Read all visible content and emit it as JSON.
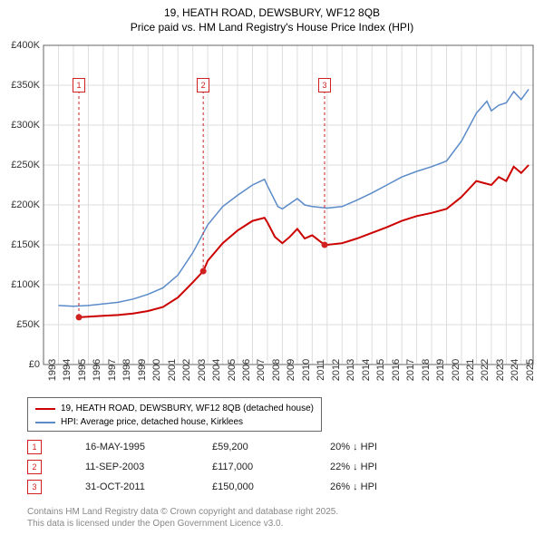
{
  "title_line1": "19, HEATH ROAD, DEWSBURY, WF12 8QB",
  "title_line2": "Price paid vs. HM Land Registry's House Price Index (HPI)",
  "chart": {
    "type": "line",
    "background_color": "#ffffff",
    "grid_color": "#dddddd",
    "axis_color": "#666666",
    "x_years": [
      1993,
      1994,
      1995,
      1996,
      1997,
      1998,
      1999,
      2000,
      2001,
      2002,
      2003,
      2004,
      2005,
      2006,
      2007,
      2008,
      2009,
      2010,
      2011,
      2012,
      2013,
      2014,
      2015,
      2016,
      2017,
      2018,
      2019,
      2020,
      2021,
      2022,
      2023,
      2024,
      2025
    ],
    "xlim": [
      1993,
      2025.8
    ],
    "ylim": [
      0,
      400000
    ],
    "ytick_step": 50000,
    "ytick_labels": [
      "£0",
      "£50K",
      "£100K",
      "£150K",
      "£200K",
      "£250K",
      "£300K",
      "£350K",
      "£400K"
    ],
    "marker_line_color": "#d02020",
    "marker_line_dash": "3,3",
    "marker_badge_border": "#d02020",
    "marker_badge_text": "#d02020",
    "series": [
      {
        "name": "price_paid",
        "label": "19, HEATH ROAD, DEWSBURY, WF12 8QB (detached house)",
        "color": "#cc0000",
        "width": 2,
        "points": [
          [
            1995.37,
            59200
          ],
          [
            1996,
            60000
          ],
          [
            1997,
            61000
          ],
          [
            1998,
            62000
          ],
          [
            1999,
            64000
          ],
          [
            2000,
            67000
          ],
          [
            2001,
            72000
          ],
          [
            2002,
            84000
          ],
          [
            2003,
            103000
          ],
          [
            2003.7,
            117000
          ],
          [
            2004,
            130000
          ],
          [
            2005,
            152000
          ],
          [
            2006,
            168000
          ],
          [
            2007,
            180000
          ],
          [
            2007.8,
            184000
          ],
          [
            2008,
            178000
          ],
          [
            2008.5,
            160000
          ],
          [
            2009,
            152000
          ],
          [
            2009.5,
            160000
          ],
          [
            2010,
            170000
          ],
          [
            2010.5,
            158000
          ],
          [
            2011,
            162000
          ],
          [
            2011.83,
            150000
          ],
          [
            2012,
            150000
          ],
          [
            2013,
            152000
          ],
          [
            2014,
            158000
          ],
          [
            2015,
            165000
          ],
          [
            2016,
            172000
          ],
          [
            2017,
            180000
          ],
          [
            2018,
            186000
          ],
          [
            2019,
            190000
          ],
          [
            2020,
            195000
          ],
          [
            2021,
            210000
          ],
          [
            2022,
            230000
          ],
          [
            2023,
            225000
          ],
          [
            2023.5,
            235000
          ],
          [
            2024,
            230000
          ],
          [
            2024.5,
            248000
          ],
          [
            2025,
            240000
          ],
          [
            2025.5,
            250000
          ]
        ]
      },
      {
        "name": "hpi",
        "label": "HPI: Average price, detached house, Kirklees",
        "color": "#5b8bc9",
        "width": 1.5,
        "points": [
          [
            1994,
            74000
          ],
          [
            1995,
            73000
          ],
          [
            1996,
            74000
          ],
          [
            1997,
            76000
          ],
          [
            1998,
            78000
          ],
          [
            1999,
            82000
          ],
          [
            2000,
            88000
          ],
          [
            2001,
            96000
          ],
          [
            2002,
            112000
          ],
          [
            2003,
            140000
          ],
          [
            2004,
            175000
          ],
          [
            2005,
            198000
          ],
          [
            2006,
            212000
          ],
          [
            2007,
            225000
          ],
          [
            2007.8,
            232000
          ],
          [
            2008,
            224000
          ],
          [
            2008.7,
            198000
          ],
          [
            2009,
            195000
          ],
          [
            2010,
            208000
          ],
          [
            2010.5,
            200000
          ],
          [
            2011,
            198000
          ],
          [
            2012,
            196000
          ],
          [
            2013,
            198000
          ],
          [
            2014,
            206000
          ],
          [
            2015,
            215000
          ],
          [
            2016,
            225000
          ],
          [
            2017,
            235000
          ],
          [
            2018,
            242000
          ],
          [
            2019,
            248000
          ],
          [
            2020,
            255000
          ],
          [
            2021,
            280000
          ],
          [
            2022,
            315000
          ],
          [
            2022.7,
            330000
          ],
          [
            2023,
            318000
          ],
          [
            2023.5,
            325000
          ],
          [
            2024,
            328000
          ],
          [
            2024.5,
            342000
          ],
          [
            2025,
            332000
          ],
          [
            2025.5,
            345000
          ]
        ]
      }
    ],
    "sale_markers": [
      {
        "n": "1",
        "year": 1995.37,
        "top_y": 350000,
        "dot_y": 59200
      },
      {
        "n": "2",
        "year": 2003.7,
        "top_y": 350000,
        "dot_y": 117000
      },
      {
        "n": "3",
        "year": 2011.83,
        "top_y": 350000,
        "dot_y": 150000
      }
    ]
  },
  "legend": {
    "items": [
      {
        "color": "#cc0000",
        "label": "19, HEATH ROAD, DEWSBURY, WF12 8QB (detached house)"
      },
      {
        "color": "#5b8bc9",
        "label": "HPI: Average price, detached house, Kirklees"
      }
    ]
  },
  "marker_rows": [
    {
      "n": "1",
      "date": "16-MAY-1995",
      "price": "£59,200",
      "hpi": "20% ↓ HPI"
    },
    {
      "n": "2",
      "date": "11-SEP-2003",
      "price": "£117,000",
      "hpi": "22% ↓ HPI"
    },
    {
      "n": "3",
      "date": "31-OCT-2011",
      "price": "£150,000",
      "hpi": "26% ↓ HPI"
    }
  ],
  "footer_line1": "Contains HM Land Registry data © Crown copyright and database right 2025.",
  "footer_line2": "This data is licensed under the Open Government Licence v3.0."
}
